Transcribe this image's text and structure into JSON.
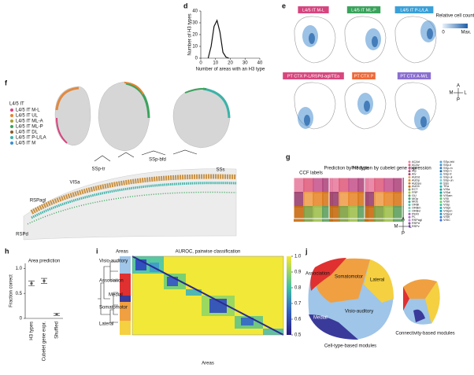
{
  "panel_labels": {
    "d": "d",
    "e": "e",
    "f": "f",
    "g": "g",
    "h": "h",
    "i": "i",
    "j": "j"
  },
  "panel_d": {
    "type": "line",
    "xlabel": "Number of areas with an H3 type",
    "ylabel": "Number of H3 types",
    "x": [
      5,
      7,
      9,
      11,
      13,
      15,
      17,
      19
    ],
    "values": [
      0,
      10,
      27,
      32,
      22,
      5,
      1,
      0
    ],
    "color": "#111111",
    "xlim": [
      0,
      40
    ],
    "ylim": [
      0,
      40
    ],
    "xticks": [
      0,
      10,
      20,
      30,
      40
    ],
    "yticks": [
      0,
      10,
      20,
      30,
      40
    ]
  },
  "panel_e": {
    "maps": [
      {
        "label": "L4/5 IT M-L",
        "color": "#d6457f"
      },
      {
        "label": "L4/5 IT ML-P",
        "color": "#3aa35c"
      },
      {
        "label": "L4/5 IT P-L/LA",
        "color": "#3aa0d8"
      },
      {
        "label": "PT CTX P-L/RSPd-agl/TEa",
        "color": "#d8477e"
      },
      {
        "label": "PT CTX P",
        "color": "#ee6a3a"
      },
      {
        "label": "PT CTX A-M/L",
        "color": "#8a6fd0"
      }
    ],
    "colorbar": {
      "title": "Relative cell count",
      "min_label": "0",
      "max_label": "Max."
    },
    "compass": {
      "a": "A",
      "p": "P",
      "m": "M",
      "l": "L"
    }
  },
  "panel_f": {
    "legend_title": "L4/5 IT",
    "legend": [
      {
        "name": "L4/5 IT M-L",
        "color": "#d8437f"
      },
      {
        "name": "L4/5 IT UL",
        "color": "#e8822c"
      },
      {
        "name": "L4/5 IT ML-A",
        "color": "#a8a030"
      },
      {
        "name": "L4/5 IT ML-P",
        "color": "#3aa35c"
      },
      {
        "name": "L4/5 IT DL",
        "color": "#8c5a2a"
      },
      {
        "name": "L4/5 IT P-L/LA",
        "color": "#3bb3a8"
      },
      {
        "name": "L4/5 IT M",
        "color": "#3a8fd0"
      }
    ],
    "areas": [
      "SSp-bfd",
      "SSp-tr",
      "VISa",
      "RSPagl",
      "RSPd",
      "SSs"
    ]
  },
  "panel_g": {
    "titles": [
      "CCF labels",
      "Prediction by H3 type",
      "Prediction by cubelet gene expression"
    ],
    "compass": {
      "a": "A",
      "p": "P",
      "m": "M",
      "l": "L"
    },
    "legend": [
      {
        "name": "ACAd",
        "color": "#e87fa0"
      },
      {
        "name": "ACAv",
        "color": "#e0607f"
      },
      {
        "name": "AId",
        "color": "#c85a90"
      },
      {
        "name": "AIp",
        "color": "#b04a80"
      },
      {
        "name": "AIv",
        "color": "#9a3f70"
      },
      {
        "name": "AUDd",
        "color": "#f0a050"
      },
      {
        "name": "AUDp",
        "color": "#e88a30"
      },
      {
        "name": "AUDpo",
        "color": "#d87a20"
      },
      {
        "name": "AUDv",
        "color": "#c86a10"
      },
      {
        "name": "ECT",
        "color": "#7fa040"
      },
      {
        "name": "FRP",
        "color": "#a0c050"
      },
      {
        "name": "GU",
        "color": "#60a060"
      },
      {
        "name": "MOp",
        "color": "#40a080"
      },
      {
        "name": "MOs",
        "color": "#30b090"
      },
      {
        "name": "ORBl",
        "color": "#50c0a0"
      },
      {
        "name": "ORBm",
        "color": "#70c8b0"
      },
      {
        "name": "ORBvl",
        "color": "#8fd0c0"
      },
      {
        "name": "PERI",
        "color": "#a060c0"
      },
      {
        "name": "PL",
        "color": "#b070d0"
      },
      {
        "name": "RSPagl",
        "color": "#c080e0"
      },
      {
        "name": "RSPd",
        "color": "#9050b0"
      },
      {
        "name": "RSPv",
        "color": "#7040a0"
      },
      {
        "name": "SSp-bfd",
        "color": "#50a0e0"
      },
      {
        "name": "SSp-ll",
        "color": "#4090d0"
      },
      {
        "name": "SSp-m",
        "color": "#3080c0"
      },
      {
        "name": "SSp-n",
        "color": "#2070b0"
      },
      {
        "name": "SSp-tr",
        "color": "#60b0f0"
      },
      {
        "name": "SSp-ul",
        "color": "#70c0e0"
      },
      {
        "name": "SSp-un",
        "color": "#80c8d0"
      },
      {
        "name": "SSs",
        "color": "#40c0c0"
      },
      {
        "name": "TEa",
        "color": "#30b0b0"
      },
      {
        "name": "VISa",
        "color": "#20a0a0"
      },
      {
        "name": "VISal",
        "color": "#10a090"
      },
      {
        "name": "VISam",
        "color": "#40b080"
      },
      {
        "name": "VISl",
        "color": "#50c070"
      },
      {
        "name": "VISli",
        "color": "#60d060"
      },
      {
        "name": "VISp",
        "color": "#30c0a0"
      },
      {
        "name": "VISpl",
        "color": "#20b0b8"
      },
      {
        "name": "VISpm",
        "color": "#10a0c0"
      },
      {
        "name": "VISpor",
        "color": "#2090c8"
      },
      {
        "name": "VISrl",
        "color": "#3080d0"
      },
      {
        "name": "VISC",
        "color": "#4070d8"
      }
    ]
  },
  "panel_h": {
    "type": "dot",
    "title": "Area prediction",
    "ylabel": "Fraction correct",
    "categories": [
      "H3 types",
      "Cubelet gene expr.",
      "Shuffled"
    ],
    "values": [
      0.7,
      0.75,
      0.08
    ],
    "errors": [
      0.05,
      0.05,
      0.02
    ],
    "color": "#555555",
    "ylim": [
      0,
      1.1
    ],
    "yticks": [
      0,
      0.5,
      {
        "value": 1,
        "label": "1.0"
      }
    ]
  },
  "panel_i": {
    "title": "AUROC, pairwise classification",
    "row_label": "Areas",
    "x_label": "Areas",
    "modules": [
      {
        "name": "Visio-auditory",
        "color": "#9fc5e8"
      },
      {
        "name": "Association",
        "color": "#e03030"
      },
      {
        "name": "Medial",
        "color": "#3a3a9a"
      },
      {
        "name": "Somatomotor",
        "color": "#f0a040"
      },
      {
        "name": "Lateral",
        "color": "#f5d040"
      }
    ],
    "colorbar": {
      "lim": [
        0.5,
        1
      ],
      "ticks": [
        0.5,
        0.6,
        0.7,
        0.8,
        0.9,
        {
          "value": 1,
          "label": "1.0"
        }
      ]
    }
  },
  "panel_j": {
    "labels": [
      "Association",
      "Somatomotor",
      "Lateral",
      "Medial",
      "Visio-auditory"
    ],
    "captions": [
      "Cell-type-based modules",
      "Connectivity-based modules"
    ]
  }
}
